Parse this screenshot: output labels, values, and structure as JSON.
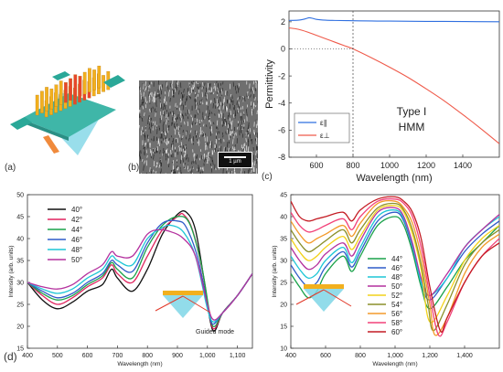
{
  "panel_labels": {
    "a": "(a)",
    "b": "(b)",
    "c": "(c)",
    "d": "(d)"
  },
  "sem": {
    "scalebar_label": "1 µm"
  },
  "colors": {
    "device_plate": "#3fb6a8",
    "nanowire_yellow": "#f2b01e",
    "nanowire_red": "#e8452c",
    "prism_blue": "#7fd6e6",
    "epsilon_parallel": "#2f6fe0",
    "epsilon_perp": "#ef5a4a"
  },
  "chart_data": [
    {
      "type": "line",
      "panel": "c",
      "title": "",
      "xlabel": "Wavelength (nm)",
      "ylabel": "Permittivity",
      "xlim": [
        450,
        1600
      ],
      "ylim": [
        -8,
        2.8
      ],
      "xticks": [
        600,
        800,
        1000,
        1200,
        1400
      ],
      "yticks": [
        2,
        0,
        -2,
        -4,
        -6,
        -8
      ],
      "grid": false,
      "legend_position": "bottom-left",
      "annotation": [
        "Type I",
        "HMM"
      ],
      "vertical_dashed_line_x": 800,
      "horizontal_dotted_line_y": 0,
      "series": [
        {
          "name": "ε∥",
          "color": "#2f6fe0",
          "x": [
            450,
            500,
            540,
            560,
            580,
            600,
            650,
            700,
            800,
            900,
            1000,
            1200,
            1400,
            1600
          ],
          "y": [
            2.1,
            2.12,
            2.22,
            2.3,
            2.25,
            2.18,
            2.12,
            2.1,
            2.08,
            2.06,
            2.05,
            2.03,
            2.02,
            2.0
          ]
        },
        {
          "name": "ε⊥",
          "color": "#ef5a4a",
          "x": [
            450,
            500,
            550,
            600,
            650,
            700,
            750,
            800,
            900,
            1000,
            1100,
            1200,
            1300,
            1400,
            1500,
            1600
          ],
          "y": [
            1.55,
            1.45,
            1.25,
            1.0,
            0.75,
            0.5,
            0.25,
            0.0,
            -0.65,
            -1.35,
            -2.1,
            -2.95,
            -3.85,
            -4.85,
            -5.9,
            -7.0
          ]
        }
      ]
    },
    {
      "type": "line",
      "panel": "d-left",
      "title": "",
      "xlabel": "Wavelength (nm)",
      "ylabel": "Intensity (arb. units)",
      "xlim": [
        400,
        1150
      ],
      "ylim": [
        15,
        50
      ],
      "xticks": [
        400,
        500,
        600,
        700,
        800,
        900,
        "1,000",
        "1,100"
      ],
      "xtick_values": [
        400,
        500,
        600,
        700,
        800,
        900,
        1000,
        1100
      ],
      "xtick_labels": [
        "400",
        "500",
        "600",
        "700",
        "800",
        "900",
        "1,000",
        "1,100"
      ],
      "yticks": [
        15,
        20,
        25,
        30,
        35,
        40,
        45,
        50
      ],
      "grid": false,
      "legend_position": "top-left",
      "annotation": "Guided mode",
      "series": [
        {
          "name": "40°",
          "color": "#111111",
          "x": [
            400,
            450,
            500,
            550,
            600,
            650,
            680,
            700,
            750,
            800,
            850,
            900,
            930,
            960,
            990,
            1010,
            1025,
            1050,
            1100,
            1150
          ],
          "y": [
            30,
            26,
            24,
            25.5,
            28,
            29.5,
            33,
            31,
            28,
            33,
            41,
            45.5,
            46,
            42,
            30,
            21,
            19,
            23,
            27,
            32
          ]
        },
        {
          "name": "42°",
          "color": "#e0245e",
          "x": [
            400,
            450,
            500,
            550,
            600,
            650,
            680,
            700,
            750,
            800,
            850,
            900,
            920,
            950,
            985,
            1010,
            1025,
            1050,
            1100,
            1150
          ],
          "y": [
            30,
            27,
            25,
            26.5,
            29,
            31,
            34,
            32,
            30,
            36,
            42,
            45,
            45.5,
            42,
            32,
            21.5,
            19.5,
            23,
            27,
            32
          ]
        },
        {
          "name": "44°",
          "color": "#1aa24a",
          "x": [
            400,
            450,
            500,
            550,
            600,
            650,
            680,
            700,
            750,
            800,
            850,
            900,
            940,
            980,
            1010,
            1025,
            1050,
            1100,
            1150
          ],
          "y": [
            30,
            27.5,
            26,
            27,
            29.5,
            31.5,
            34.5,
            33,
            31,
            38,
            43,
            45,
            43.5,
            34,
            22,
            20,
            23,
            27,
            32
          ]
        },
        {
          "name": "46°",
          "color": "#2f5bc8",
          "x": [
            400,
            450,
            500,
            550,
            600,
            650,
            680,
            700,
            750,
            800,
            850,
            900,
            930,
            970,
            1005,
            1020,
            1050,
            1100,
            1150
          ],
          "y": [
            30,
            28,
            26.5,
            27.5,
            30,
            32,
            35,
            34,
            32.5,
            39,
            43.5,
            44,
            42.5,
            35,
            23,
            20.5,
            23,
            27,
            32
          ]
        },
        {
          "name": "48°",
          "color": "#1ec6d6",
          "x": [
            400,
            450,
            500,
            550,
            600,
            650,
            680,
            700,
            750,
            800,
            850,
            880,
            920,
            960,
            1000,
            1020,
            1050,
            1100,
            1150
          ],
          "y": [
            30,
            28.5,
            27.5,
            28.5,
            31,
            33,
            36,
            35,
            34,
            40,
            42.5,
            43,
            41.5,
            36,
            24,
            21,
            23,
            27,
            32
          ]
        },
        {
          "name": "50°",
          "color": "#b4319e",
          "x": [
            400,
            450,
            500,
            550,
            600,
            650,
            680,
            700,
            750,
            800,
            840,
            880,
            920,
            960,
            1000,
            1020,
            1050,
            1100,
            1150
          ],
          "y": [
            30,
            29,
            28.5,
            29.5,
            32,
            34,
            37,
            36,
            36,
            41,
            42,
            41.5,
            40,
            36,
            25,
            21.5,
            23,
            27,
            32
          ]
        }
      ]
    },
    {
      "type": "line",
      "panel": "d-right",
      "title": "",
      "xlabel": "Wavelength (nm)",
      "ylabel": "Intensity (arb. units)",
      "xlim": [
        400,
        1600
      ],
      "ylim": [
        10,
        45
      ],
      "xtick_values": [
        400,
        600,
        800,
        1000,
        1200,
        1400
      ],
      "xtick_labels": [
        "400",
        "600",
        "800",
        "1,000",
        "1,200",
        "1,400"
      ],
      "yticks": [
        10,
        15,
        20,
        25,
        30,
        35,
        40,
        45
      ],
      "grid": false,
      "legend_position": "center",
      "series": [
        {
          "name": "44°",
          "color": "#1aa24a",
          "x": [
            400,
            450,
            500,
            550,
            600,
            700,
            750,
            800,
            900,
            1000,
            1050,
            1100,
            1150,
            1200,
            1300,
            1400,
            1500,
            1600
          ],
          "y": [
            27,
            24,
            21.5,
            23,
            27,
            31,
            27.5,
            31,
            38,
            40,
            38,
            32,
            24,
            19,
            24,
            30,
            34,
            38
          ]
        },
        {
          "name": "46°",
          "color": "#2f5bc8",
          "x": [
            400,
            450,
            500,
            550,
            600,
            700,
            750,
            800,
            900,
            1000,
            1050,
            1100,
            1150,
            1200,
            1300,
            1400,
            1500,
            1600
          ],
          "y": [
            29,
            26,
            24,
            25,
            28.5,
            32,
            28.5,
            32,
            39,
            41,
            39,
            33,
            25,
            21,
            26,
            32,
            36,
            39
          ]
        },
        {
          "name": "48°",
          "color": "#1ec6d6",
          "x": [
            400,
            450,
            500,
            550,
            600,
            700,
            750,
            800,
            900,
            1000,
            1050,
            1100,
            1150,
            1200,
            1300,
            1400,
            1500,
            1600
          ],
          "y": [
            31,
            28,
            26,
            27,
            30,
            33,
            29.5,
            33,
            40,
            41.5,
            39.5,
            33.5,
            25,
            22,
            26,
            33,
            37,
            40
          ]
        },
        {
          "name": "50°",
          "color": "#b4319e",
          "x": [
            400,
            450,
            500,
            550,
            600,
            700,
            750,
            800,
            900,
            1000,
            1050,
            1100,
            1150,
            1200,
            1300,
            1400,
            1500,
            1600
          ],
          "y": [
            33,
            30,
            28,
            29,
            31.5,
            34,
            31,
            34.5,
            41,
            42,
            40,
            34,
            26,
            22,
            27,
            33,
            37,
            40.5
          ]
        },
        {
          "name": "52°",
          "color": "#f2d21a",
          "x": [
            400,
            450,
            500,
            550,
            600,
            700,
            750,
            800,
            900,
            1000,
            1050,
            1100,
            1150,
            1200,
            1300,
            1400,
            1500,
            1600
          ],
          "y": [
            35,
            32,
            30,
            31,
            33,
            35.5,
            32.5,
            35.5,
            41.5,
            42.5,
            41,
            36,
            28,
            16,
            22,
            30,
            35,
            38
          ]
        },
        {
          "name": "54°",
          "color": "#8a8f2a",
          "x": [
            400,
            450,
            500,
            550,
            600,
            700,
            750,
            800,
            900,
            1000,
            1050,
            1100,
            1150,
            1190,
            1220,
            1300,
            1400,
            1500,
            1600
          ],
          "y": [
            37,
            34,
            32,
            33,
            34.5,
            37,
            34,
            37,
            42,
            43,
            41.5,
            37,
            29,
            20,
            14,
            20,
            29,
            34,
            37
          ]
        },
        {
          "name": "56°",
          "color": "#f39a2a",
          "x": [
            400,
            450,
            500,
            550,
            600,
            700,
            750,
            800,
            900,
            1000,
            1050,
            1100,
            1150,
            1200,
            1230,
            1300,
            1400,
            1500,
            1600
          ],
          "y": [
            39,
            36,
            34,
            35,
            36,
            38,
            35.5,
            38.5,
            43,
            43.5,
            42,
            38.5,
            31,
            20,
            13,
            17,
            27,
            33,
            36
          ]
        },
        {
          "name": "58°",
          "color": "#f2427a",
          "x": [
            400,
            450,
            500,
            550,
            600,
            700,
            750,
            800,
            900,
            1000,
            1050,
            1100,
            1150,
            1200,
            1250,
            1300,
            1400,
            1500,
            1600
          ],
          "y": [
            41,
            38,
            36.5,
            37,
            38,
            39.5,
            37,
            40,
            43.5,
            44,
            43,
            40,
            33,
            22,
            13,
            16,
            25,
            31,
            35
          ]
        },
        {
          "name": "60°",
          "color": "#c41c24",
          "x": [
            400,
            450,
            500,
            550,
            600,
            700,
            750,
            800,
            900,
            1000,
            1050,
            1100,
            1150,
            1200,
            1260,
            1300,
            1400,
            1500,
            1600
          ],
          "y": [
            43.5,
            40,
            39,
            39.5,
            40,
            41,
            39,
            41.5,
            44,
            44.5,
            43.5,
            41,
            35,
            24,
            14,
            17,
            25,
            31,
            34
          ]
        }
      ]
    }
  ]
}
